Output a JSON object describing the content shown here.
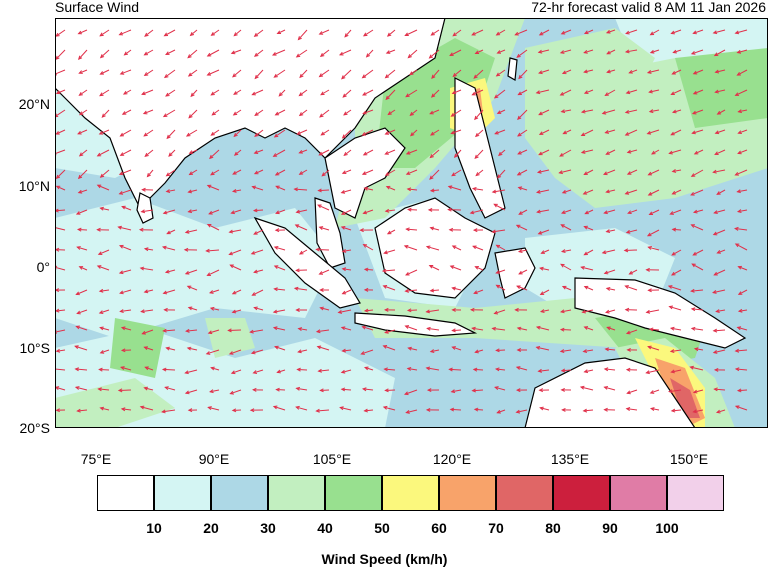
{
  "header": {
    "title": "Surface Wind",
    "valid": "72-hr forecast valid 8 AM 11 Jan 2026"
  },
  "map": {
    "lat_labels": [
      "20°N",
      "10°N",
      "0°",
      "10°S",
      "20°S"
    ],
    "lon_labels": [
      "75°E",
      "90°E",
      "105°E",
      "120°E",
      "135°E",
      "150°E"
    ]
  },
  "legend": {
    "title": "Wind Speed (km/h)",
    "ticks": [
      "10",
      "20",
      "30",
      "40",
      "50",
      "60",
      "70",
      "80",
      "90",
      "100"
    ],
    "colors": [
      "#ffffff",
      "#d4f5f3",
      "#add8e6",
      "#c2efc0",
      "#98e08f",
      "#fbf87d",
      "#f8a36a",
      "#e06666",
      "#cc1f3d",
      "#e07ca6",
      "#f2d0ea"
    ]
  },
  "colors": {
    "land": "#ffffff",
    "arrow": "#e0304a",
    "coast": "#000000"
  }
}
